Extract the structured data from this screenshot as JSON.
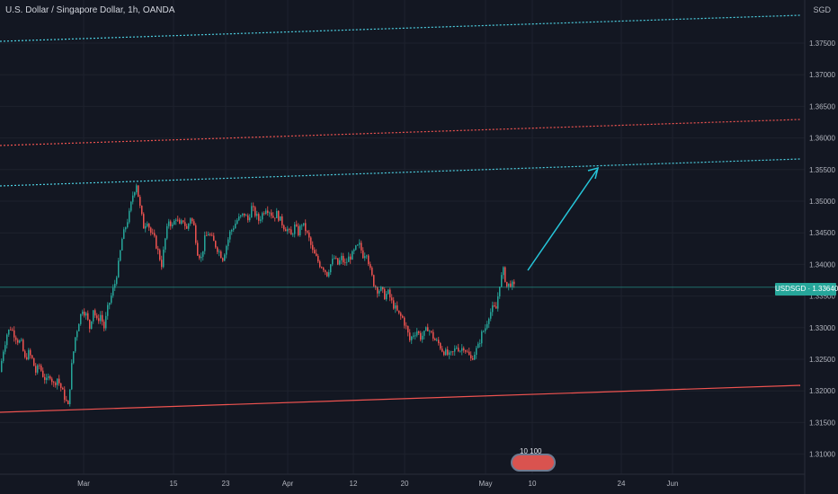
{
  "header": {
    "title": "U.S. Dollar / Singapore Dollar, 1h, OANDA",
    "currency": "SGD"
  },
  "price_tag": {
    "symbol": "USDSGD",
    "price": "1.33640"
  },
  "badge": {
    "text": "10 100"
  },
  "colors": {
    "background": "#131722",
    "up": "#26a69a",
    "down": "#ef5350",
    "channel_cyan": "#4dd0e1",
    "channel_red": "#ef5350",
    "arrow": "#26c6da"
  },
  "chart_data": {
    "type": "candlestick",
    "y_ticks": [
      "1.37500",
      "1.37000",
      "1.36500",
      "1.36000",
      "1.35500",
      "1.35000",
      "1.34500",
      "1.34000",
      "1.33500",
      "1.33000",
      "1.32500",
      "1.32000",
      "1.31500",
      "1.31000"
    ],
    "x_ticks": [
      "Mar",
      "15",
      "23",
      "Apr",
      "12",
      "20",
      "May",
      "10",
      "24",
      "Jun"
    ],
    "ylim": [
      1.3075,
      1.3785
    ],
    "last_price": 1.3364,
    "close_path": [
      [
        0,
        1.323
      ],
      [
        4,
        1.3265
      ],
      [
        8,
        1.329
      ],
      [
        12,
        1.33
      ],
      [
        16,
        1.329
      ],
      [
        20,
        1.328
      ],
      [
        24,
        1.3275
      ],
      [
        28,
        1.325
      ],
      [
        32,
        1.326
      ],
      [
        36,
        1.325
      ],
      [
        40,
        1.323
      ],
      [
        44,
        1.324
      ],
      [
        48,
        1.3225
      ],
      [
        52,
        1.3215
      ],
      [
        56,
        1.3225
      ],
      [
        60,
        1.321
      ],
      [
        64,
        1.322
      ],
      [
        68,
        1.3205
      ],
      [
        72,
        1.319
      ],
      [
        76,
        1.3175
      ],
      [
        80,
        1.324
      ],
      [
        84,
        1.3285
      ],
      [
        88,
        1.331
      ],
      [
        92,
        1.333
      ],
      [
        96,
        1.332
      ],
      [
        100,
        1.33
      ],
      [
        104,
        1.333
      ],
      [
        108,
        1.331
      ],
      [
        112,
        1.332
      ],
      [
        116,
        1.33
      ],
      [
        120,
        1.333
      ],
      [
        124,
        1.335
      ],
      [
        128,
        1.337
      ],
      [
        132,
        1.34
      ],
      [
        136,
        1.344
      ],
      [
        140,
        1.346
      ],
      [
        144,
        1.348
      ],
      [
        148,
        1.351
      ],
      [
        152,
        1.3528
      ],
      [
        156,
        1.349
      ],
      [
        160,
        1.346
      ],
      [
        164,
        1.347
      ],
      [
        168,
        1.345
      ],
      [
        172,
        1.344
      ],
      [
        176,
        1.342
      ],
      [
        180,
        1.34
      ],
      [
        184,
        1.344
      ],
      [
        188,
        1.347
      ],
      [
        192,
        1.346
      ],
      [
        196,
        1.3475
      ],
      [
        200,
        1.346
      ],
      [
        204,
        1.347
      ],
      [
        208,
        1.3455
      ],
      [
        212,
        1.3475
      ],
      [
        216,
        1.346
      ],
      [
        220,
        1.342
      ],
      [
        224,
        1.341
      ],
      [
        228,
        1.344
      ],
      [
        232,
        1.345
      ],
      [
        236,
        1.344
      ],
      [
        240,
        1.343
      ],
      [
        244,
        1.342
      ],
      [
        248,
        1.341
      ],
      [
        252,
        1.343
      ],
      [
        256,
        1.345
      ],
      [
        260,
        1.346
      ],
      [
        264,
        1.347
      ],
      [
        268,
        1.3475
      ],
      [
        272,
        1.348
      ],
      [
        276,
        1.347
      ],
      [
        280,
        1.349
      ],
      [
        284,
        1.348
      ],
      [
        288,
        1.347
      ],
      [
        292,
        1.348
      ],
      [
        296,
        1.349
      ],
      [
        300,
        1.3485
      ],
      [
        304,
        1.3475
      ],
      [
        308,
        1.348
      ],
      [
        312,
        1.347
      ],
      [
        316,
        1.346
      ],
      [
        320,
        1.3455
      ],
      [
        324,
        1.3445
      ],
      [
        328,
        1.346
      ],
      [
        332,
        1.345
      ],
      [
        336,
        1.3465
      ],
      [
        340,
        1.3455
      ],
      [
        344,
        1.344
      ],
      [
        348,
        1.342
      ],
      [
        352,
        1.341
      ],
      [
        356,
        1.34
      ],
      [
        360,
        1.3395
      ],
      [
        364,
        1.3385
      ],
      [
        368,
        1.34
      ],
      [
        372,
        1.341
      ],
      [
        376,
        1.34
      ],
      [
        380,
        1.341
      ],
      [
        384,
        1.34
      ],
      [
        388,
        1.341
      ],
      [
        392,
        1.3415
      ],
      [
        396,
        1.3425
      ],
      [
        400,
        1.343
      ],
      [
        404,
        1.3415
      ],
      [
        408,
        1.342
      ],
      [
        412,
        1.339
      ],
      [
        416,
        1.337
      ],
      [
        420,
        1.336
      ],
      [
        424,
        1.336
      ],
      [
        428,
        1.335
      ],
      [
        432,
        1.3355
      ],
      [
        436,
        1.334
      ],
      [
        440,
        1.333
      ],
      [
        444,
        1.332
      ],
      [
        448,
        1.3315
      ],
      [
        452,
        1.33
      ],
      [
        456,
        1.328
      ],
      [
        460,
        1.329
      ],
      [
        464,
        1.3295
      ],
      [
        468,
        1.3285
      ],
      [
        472,
        1.329
      ],
      [
        476,
        1.33
      ],
      [
        480,
        1.329
      ],
      [
        484,
        1.328
      ],
      [
        488,
        1.3275
      ],
      [
        492,
        1.3265
      ],
      [
        496,
        1.326
      ],
      [
        500,
        1.3255
      ],
      [
        504,
        1.326
      ],
      [
        508,
        1.327
      ],
      [
        512,
        1.3265
      ],
      [
        516,
        1.327
      ],
      [
        520,
        1.326
      ],
      [
        524,
        1.325
      ],
      [
        528,
        1.326
      ],
      [
        532,
        1.327
      ],
      [
        536,
        1.329
      ],
      [
        540,
        1.33
      ],
      [
        544,
        1.332
      ],
      [
        548,
        1.333
      ],
      [
        552,
        1.333
      ],
      [
        556,
        1.337
      ],
      [
        560,
        1.339
      ],
      [
        564,
        1.3365
      ],
      [
        568,
        1.337
      ],
      [
        572,
        1.3364
      ]
    ]
  }
}
